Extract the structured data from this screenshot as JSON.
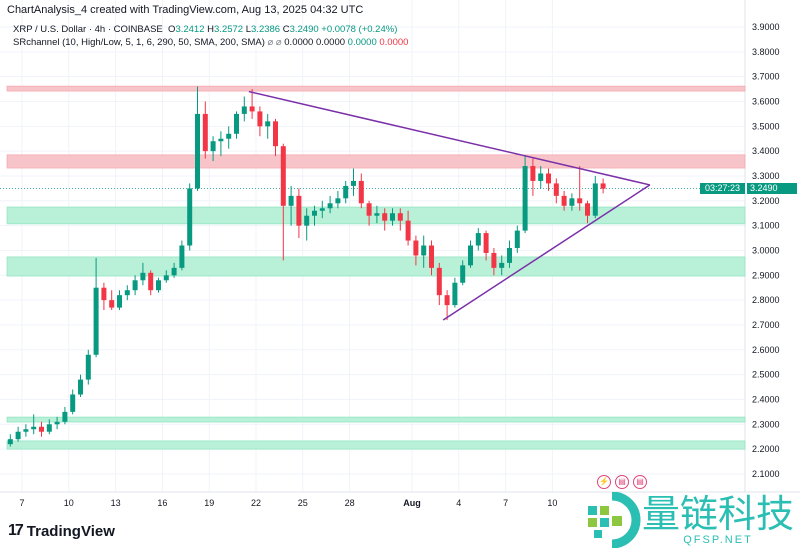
{
  "header": {
    "title": "ChartAnalysis_4 created with TradingView.com, Aug 13, 2025 04:32 UTC",
    "symbol": "XRP / U.S. Dollar · 4h · COINBASE",
    "open_label": "O",
    "open": "3.2412",
    "high_label": "H",
    "high": "3.2572",
    "low_label": "L",
    "low": "3.2386",
    "close_label": "C",
    "close": "3.2490",
    "change": "+0.0078 (+0.24%)",
    "indicator": "SRchannel (10, High/Low, 5, 1, 6, 290, 50, SMA, 200, SMA)",
    "indicator_icons": "⌀ ⌀",
    "ind_v1": "0.0000",
    "ind_v2": "0.0000",
    "ind_v3": "0.0000",
    "ind_v4": "0.0000"
  },
  "price_label": {
    "price": "3.2490",
    "countdown": "03:27:23"
  },
  "branding": {
    "logo_text": "TradingView",
    "watermark_cn": "量链科技",
    "watermark_en": "QFSP.NET"
  },
  "events": [
    {
      "icon": "lightning-icon"
    },
    {
      "icon": "us-flag-icon"
    },
    {
      "icon": "us-flag-icon"
    }
  ],
  "colors": {
    "up": "#089981",
    "down": "#f23645",
    "resistance_zone": "#f7c5c9",
    "support_zone": "#b9f0d8",
    "trendline": "#7b2fa8"
  },
  "chart_data": {
    "type": "candlestick",
    "interval": "4h",
    "ylim": [
      2.05,
      3.95
    ],
    "y_ticks": [
      "3.9000",
      "3.8000",
      "3.7000",
      "3.6000",
      "3.5000",
      "3.4000",
      "3.3000",
      "3.2000",
      "3.1000",
      "3.0000",
      "2.9000",
      "2.8000",
      "2.7000",
      "2.6000",
      "2.5000",
      "2.4000",
      "2.3000",
      "2.2000",
      "2.1000"
    ],
    "x_ticks": [
      {
        "label": "7",
        "date": "07-07"
      },
      {
        "label": "10",
        "date": "07-10"
      },
      {
        "label": "13",
        "date": "07-13"
      },
      {
        "label": "16",
        "date": "07-16"
      },
      {
        "label": "19",
        "date": "07-19"
      },
      {
        "label": "22",
        "date": "07-22"
      },
      {
        "label": "25",
        "date": "07-25"
      },
      {
        "label": "28",
        "date": "07-28"
      },
      {
        "label": "Aug",
        "date": "08-01"
      },
      {
        "label": "4",
        "date": "08-04"
      },
      {
        "label": "7",
        "date": "08-07"
      },
      {
        "label": "10",
        "date": "08-10"
      }
    ],
    "grid": true,
    "last_price": 3.249,
    "zones": [
      {
        "kind": "resistance",
        "low": 3.642,
        "high": 3.662
      },
      {
        "kind": "resistance",
        "low": 3.332,
        "high": 3.385
      },
      {
        "kind": "support",
        "low": 3.107,
        "high": 3.175
      },
      {
        "kind": "support",
        "low": 2.897,
        "high": 2.974
      },
      {
        "kind": "support",
        "low": 2.309,
        "high": 2.329
      },
      {
        "kind": "support",
        "low": 2.2,
        "high": 2.233
      }
    ],
    "trendlines": [
      {
        "from": {
          "date": "07-21 13",
          "price": 3.64
        },
        "to": {
          "date": "08-16 06",
          "price": 3.264
        }
      },
      {
        "from": {
          "date": "08-03 00",
          "price": 2.72
        },
        "to": {
          "date": "08-16 06",
          "price": 3.264
        }
      }
    ],
    "candles": [
      [
        "07-06 00",
        2.22,
        2.26,
        2.21,
        2.24
      ],
      [
        "07-06 12",
        2.24,
        2.29,
        2.23,
        2.27
      ],
      [
        "07-07 00",
        2.27,
        2.3,
        2.25,
        2.28
      ],
      [
        "07-07 12",
        2.28,
        2.34,
        2.26,
        2.29
      ],
      [
        "07-08 00",
        2.29,
        2.31,
        2.25,
        2.27
      ],
      [
        "07-08 12",
        2.27,
        2.32,
        2.26,
        2.3
      ],
      [
        "07-09 00",
        2.3,
        2.33,
        2.28,
        2.31
      ],
      [
        "07-09 12",
        2.31,
        2.37,
        2.3,
        2.35
      ],
      [
        "07-10 00",
        2.35,
        2.44,
        2.34,
        2.42
      ],
      [
        "07-10 12",
        2.42,
        2.5,
        2.41,
        2.48
      ],
      [
        "07-11 00",
        2.48,
        2.6,
        2.46,
        2.58
      ],
      [
        "07-11 12",
        2.58,
        2.97,
        2.57,
        2.85
      ],
      [
        "07-12 00",
        2.85,
        2.87,
        2.76,
        2.8
      ],
      [
        "07-12 12",
        2.8,
        2.84,
        2.76,
        2.77
      ],
      [
        "07-13 00",
        2.77,
        2.84,
        2.76,
        2.82
      ],
      [
        "07-13 12",
        2.82,
        2.86,
        2.8,
        2.84
      ],
      [
        "07-14 00",
        2.84,
        2.9,
        2.82,
        2.88
      ],
      [
        "07-14 12",
        2.88,
        2.95,
        2.86,
        2.91
      ],
      [
        "07-15 00",
        2.91,
        2.92,
        2.82,
        2.84
      ],
      [
        "07-15 12",
        2.84,
        2.89,
        2.83,
        2.88
      ],
      [
        "07-16 00",
        2.88,
        2.92,
        2.87,
        2.9
      ],
      [
        "07-16 12",
        2.9,
        2.95,
        2.89,
        2.93
      ],
      [
        "07-17 00",
        2.93,
        3.04,
        2.92,
        3.02
      ],
      [
        "07-17 12",
        3.02,
        3.27,
        3.0,
        3.25
      ],
      [
        "07-18 00",
        3.25,
        3.66,
        3.24,
        3.55
      ],
      [
        "07-18 12",
        3.55,
        3.6,
        3.37,
        3.4
      ],
      [
        "07-19 00",
        3.4,
        3.46,
        3.36,
        3.44
      ],
      [
        "07-19 12",
        3.44,
        3.48,
        3.38,
        3.45
      ],
      [
        "07-20 00",
        3.45,
        3.5,
        3.41,
        3.47
      ],
      [
        "07-20 12",
        3.47,
        3.56,
        3.45,
        3.55
      ],
      [
        "07-21 00",
        3.55,
        3.62,
        3.52,
        3.58
      ],
      [
        "07-21 12",
        3.58,
        3.65,
        3.53,
        3.56
      ],
      [
        "07-22 00",
        3.56,
        3.58,
        3.46,
        3.5
      ],
      [
        "07-22 12",
        3.5,
        3.55,
        3.45,
        3.52
      ],
      [
        "07-23 00",
        3.52,
        3.53,
        3.38,
        3.42
      ],
      [
        "07-23 12",
        3.42,
        3.43,
        2.96,
        3.18
      ],
      [
        "07-24 00",
        3.18,
        3.26,
        3.1,
        3.22
      ],
      [
        "07-24 12",
        3.22,
        3.25,
        3.05,
        3.1
      ],
      [
        "07-25 00",
        3.1,
        3.17,
        3.04,
        3.14
      ],
      [
        "07-25 12",
        3.14,
        3.18,
        3.1,
        3.16
      ],
      [
        "07-26 00",
        3.16,
        3.2,
        3.13,
        3.17
      ],
      [
        "07-26 12",
        3.17,
        3.22,
        3.15,
        3.19
      ],
      [
        "07-27 00",
        3.19,
        3.24,
        3.17,
        3.21
      ],
      [
        "07-27 12",
        3.21,
        3.28,
        3.19,
        3.26
      ],
      [
        "07-28 00",
        3.26,
        3.33,
        3.22,
        3.28
      ],
      [
        "07-28 12",
        3.28,
        3.31,
        3.17,
        3.19
      ],
      [
        "07-29 00",
        3.19,
        3.2,
        3.1,
        3.14
      ],
      [
        "07-29 12",
        3.14,
        3.18,
        3.11,
        3.15
      ],
      [
        "07-30 00",
        3.15,
        3.17,
        3.08,
        3.12
      ],
      [
        "07-30 12",
        3.12,
        3.17,
        3.1,
        3.15
      ],
      [
        "07-31 00",
        3.15,
        3.17,
        3.08,
        3.12
      ],
      [
        "07-31 12",
        3.12,
        3.16,
        3.02,
        3.04
      ],
      [
        "08-01 00",
        3.04,
        3.06,
        2.94,
        2.98
      ],
      [
        "08-01 12",
        2.98,
        3.06,
        2.93,
        3.02
      ],
      [
        "08-02 00",
        3.02,
        3.04,
        2.9,
        2.93
      ],
      [
        "08-02 12",
        2.93,
        2.95,
        2.78,
        2.82
      ],
      [
        "08-03 00",
        2.82,
        2.84,
        2.72,
        2.78
      ],
      [
        "08-03 12",
        2.78,
        2.89,
        2.77,
        2.87
      ],
      [
        "08-04 00",
        2.87,
        2.96,
        2.86,
        2.94
      ],
      [
        "08-04 12",
        2.94,
        3.04,
        2.93,
        3.02
      ],
      [
        "08-05 00",
        3.02,
        3.09,
        3.0,
        3.07
      ],
      [
        "08-05 12",
        3.07,
        3.08,
        2.96,
        2.99
      ],
      [
        "08-06 00",
        2.99,
        3.01,
        2.9,
        2.93
      ],
      [
        "08-06 12",
        2.93,
        2.98,
        2.9,
        2.95
      ],
      [
        "08-07 00",
        2.95,
        3.04,
        2.93,
        3.01
      ],
      [
        "08-07 12",
        3.01,
        3.1,
        2.99,
        3.08
      ],
      [
        "08-08 00",
        3.08,
        3.38,
        3.07,
        3.34
      ],
      [
        "08-08 12",
        3.34,
        3.37,
        3.22,
        3.28
      ],
      [
        "08-09 00",
        3.28,
        3.34,
        3.25,
        3.31
      ],
      [
        "08-09 12",
        3.31,
        3.33,
        3.24,
        3.27
      ],
      [
        "08-10 00",
        3.27,
        3.29,
        3.19,
        3.22
      ],
      [
        "08-10 12",
        3.22,
        3.24,
        3.16,
        3.18
      ],
      [
        "08-11 00",
        3.18,
        3.23,
        3.16,
        3.21
      ],
      [
        "08-11 12",
        3.21,
        3.34,
        3.16,
        3.19
      ],
      [
        "08-12 00",
        3.19,
        3.2,
        3.11,
        3.14
      ],
      [
        "08-12 12",
        3.14,
        3.3,
        3.13,
        3.27
      ],
      [
        "08-13 00",
        3.27,
        3.29,
        3.23,
        3.249
      ]
    ]
  }
}
